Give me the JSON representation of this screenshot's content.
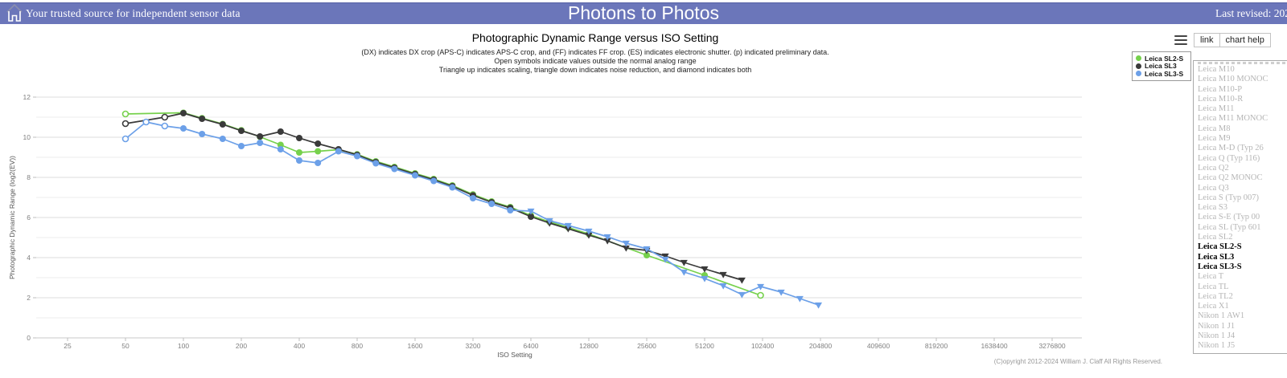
{
  "header": {
    "tagline": "Your trusted source for independent sensor data",
    "site_title": "Photons to Photos",
    "last_revised": "Last revised: 202"
  },
  "toolbar": {
    "menu_icon": "hamburger-icon",
    "link_label": "link",
    "chart_help_label": "chart help"
  },
  "chart_data": {
    "type": "line",
    "title": "Photographic Dynamic Range versus ISO Setting",
    "subtitles": [
      "(DX) indicates DX crop (APS-C) indicates APS-C crop, and (FF) indicates FF crop. (ES) indicates electronic shutter. (p) indicated preliminary data.",
      "Open symbols indicate values outside the normal analog range",
      "Triangle up indicates scaling, triangle down indicates noise reduction, and diamond indicates both"
    ],
    "xlabel": "ISO Setting",
    "ylabel": "Photographic Dynamic Range (log2(EV))",
    "x_scale": "log2",
    "x_ticks": [
      25,
      50,
      100,
      200,
      400,
      800,
      1600,
      3200,
      6400,
      12800,
      25600,
      51200,
      102400,
      204800,
      409600,
      819200,
      1638400,
      3276800
    ],
    "y_ticks": [
      0,
      2,
      4,
      6,
      8,
      10,
      12
    ],
    "ylim": [
      0,
      12.5
    ],
    "grid": "horizontal",
    "legend_position": "top-right",
    "marker_legend": {
      "c": "filled circle = normal",
      "o": "open = outside normal analog range",
      "t": "triangle down = noise reduction"
    },
    "series": [
      {
        "name": "Leica SL2-S",
        "color": "#76d14c",
        "points": [
          [
            50,
            11.16,
            "o"
          ],
          [
            100,
            11.22
          ],
          [
            125,
            10.95
          ],
          [
            160,
            10.66
          ],
          [
            200,
            10.35
          ],
          [
            250,
            10.02
          ],
          [
            320,
            9.62
          ],
          [
            400,
            9.24
          ],
          [
            500,
            9.3
          ],
          [
            640,
            9.38
          ],
          [
            800,
            9.15
          ],
          [
            1000,
            8.8
          ],
          [
            1250,
            8.52
          ],
          [
            1600,
            8.2
          ],
          [
            2000,
            7.92
          ],
          [
            2500,
            7.6
          ],
          [
            3200,
            7.15
          ],
          [
            4000,
            6.8
          ],
          [
            5000,
            6.52
          ],
          [
            6400,
            6.1
          ],
          [
            8000,
            5.78
          ],
          [
            10000,
            5.5
          ],
          [
            12800,
            5.18
          ],
          [
            25600,
            4.12
          ],
          [
            51200,
            3.12
          ],
          [
            100000,
            2.12,
            "o"
          ]
        ]
      },
      {
        "name": "Leica SL3",
        "color": "#3a3a3a",
        "points": [
          [
            50,
            10.68,
            "o"
          ],
          [
            80,
            11.0,
            "o"
          ],
          [
            100,
            11.2
          ],
          [
            125,
            10.92
          ],
          [
            160,
            10.64
          ],
          [
            200,
            10.32
          ],
          [
            250,
            10.04
          ],
          [
            320,
            10.28
          ],
          [
            400,
            9.96
          ],
          [
            500,
            9.68
          ],
          [
            640,
            9.4
          ],
          [
            800,
            9.12
          ],
          [
            1000,
            8.76
          ],
          [
            1250,
            8.48
          ],
          [
            1600,
            8.16
          ],
          [
            2000,
            7.88
          ],
          [
            2500,
            7.56
          ],
          [
            3200,
            7.1
          ],
          [
            4000,
            6.76
          ],
          [
            5000,
            6.48
          ],
          [
            6400,
            6.04
          ],
          [
            8000,
            5.72,
            "t"
          ],
          [
            10000,
            5.44,
            "t"
          ],
          [
            12800,
            5.12,
            "t"
          ],
          [
            16000,
            4.84,
            "t"
          ],
          [
            20000,
            4.48,
            "t"
          ],
          [
            25600,
            4.36,
            "t"
          ],
          [
            32000,
            4.08,
            "t"
          ],
          [
            40000,
            3.76,
            "t"
          ],
          [
            51200,
            3.44,
            "t"
          ],
          [
            64000,
            3.16,
            "t"
          ],
          [
            80000,
            2.88,
            "t"
          ]
        ]
      },
      {
        "name": "Leica SL3-S",
        "color": "#6ca0e8",
        "points": [
          [
            50,
            9.92,
            "o"
          ],
          [
            64,
            10.76,
            "o"
          ],
          [
            80,
            10.56,
            "o"
          ],
          [
            100,
            10.44
          ],
          [
            125,
            10.16
          ],
          [
            160,
            9.92
          ],
          [
            200,
            9.56
          ],
          [
            250,
            9.72
          ],
          [
            320,
            9.4
          ],
          [
            400,
            8.84
          ],
          [
            500,
            8.72
          ],
          [
            640,
            9.3
          ],
          [
            800,
            9.06
          ],
          [
            1000,
            8.7
          ],
          [
            1250,
            8.42
          ],
          [
            1600,
            8.1
          ],
          [
            2000,
            7.82
          ],
          [
            2500,
            7.5
          ],
          [
            3200,
            6.96
          ],
          [
            4000,
            6.68
          ],
          [
            5000,
            6.36
          ],
          [
            6400,
            6.32,
            "t"
          ],
          [
            8000,
            5.84,
            "t"
          ],
          [
            10000,
            5.6,
            "t"
          ],
          [
            12800,
            5.32,
            "t"
          ],
          [
            16000,
            5.04,
            "t"
          ],
          [
            20000,
            4.72,
            "t"
          ],
          [
            25600,
            4.44,
            "t"
          ],
          [
            32000,
            3.92,
            "t"
          ],
          [
            40000,
            3.28,
            "t"
          ],
          [
            51200,
            2.96,
            "t"
          ],
          [
            64000,
            2.6,
            "t"
          ],
          [
            80000,
            2.16,
            "t"
          ],
          [
            100000,
            2.56,
            "t"
          ],
          [
            128000,
            2.28,
            "t"
          ],
          [
            160000,
            1.96,
            "t"
          ],
          [
            200000,
            1.64,
            "t"
          ]
        ]
      }
    ]
  },
  "camera_list": {
    "items": [
      {
        "label": "Leica M10",
        "selected": false
      },
      {
        "label": "Leica M10 MONOC",
        "selected": false
      },
      {
        "label": "Leica M10-P",
        "selected": false
      },
      {
        "label": "Leica M10-R",
        "selected": false
      },
      {
        "label": "Leica M11",
        "selected": false
      },
      {
        "label": "Leica M11 MONOC",
        "selected": false
      },
      {
        "label": "Leica M8",
        "selected": false
      },
      {
        "label": "Leica M9",
        "selected": false
      },
      {
        "label": "Leica M-D (Typ 26",
        "selected": false
      },
      {
        "label": "Leica Q (Typ 116)",
        "selected": false
      },
      {
        "label": "Leica Q2",
        "selected": false
      },
      {
        "label": "Leica Q2 MONOC",
        "selected": false
      },
      {
        "label": "Leica Q3",
        "selected": false
      },
      {
        "label": "Leica S (Typ 007)",
        "selected": false
      },
      {
        "label": "Leica S3",
        "selected": false
      },
      {
        "label": "Leica S-E (Typ 00",
        "selected": false
      },
      {
        "label": "Leica SL (Typ 601",
        "selected": false
      },
      {
        "label": "Leica SL2",
        "selected": false
      },
      {
        "label": "Leica SL2-S",
        "selected": true
      },
      {
        "label": "Leica SL3",
        "selected": true
      },
      {
        "label": "Leica SL3-S",
        "selected": true
      },
      {
        "label": "Leica T",
        "selected": false
      },
      {
        "label": "Leica TL",
        "selected": false
      },
      {
        "label": "Leica TL2",
        "selected": false
      },
      {
        "label": "Leica X1",
        "selected": false
      },
      {
        "label": "Nikon 1 AW1",
        "selected": false
      },
      {
        "label": "Nikon 1 J1",
        "selected": false
      },
      {
        "label": "Nikon 1 J4",
        "selected": false
      },
      {
        "label": "Nikon 1 J5",
        "selected": false
      }
    ]
  },
  "footer": {
    "copyright": "(C)opyright 2012-2024 William J. Claff All Rights Reserved."
  }
}
